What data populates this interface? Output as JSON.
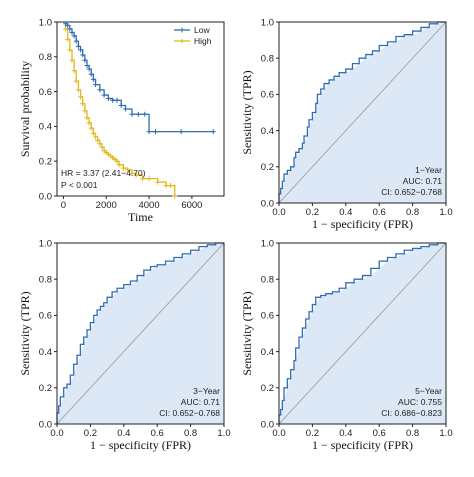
{
  "chart_data": [
    {
      "type": "line",
      "subtype": "kaplan-meier",
      "title": "",
      "xlabel": "Time",
      "ylabel": "Survival probability",
      "xlim": [
        -300,
        7500
      ],
      "ylim": [
        0,
        1.0
      ],
      "xticks": [
        0,
        2000,
        4000,
        6000
      ],
      "yticks": [
        0.0,
        0.2,
        0.4,
        0.6,
        0.8,
        1.0
      ],
      "xtick_labels": [
        "0",
        "2000",
        "4000",
        "6000"
      ],
      "ytick_labels": [
        "0.0",
        "0.2",
        "0.4",
        "0.6",
        "0.8",
        "1.0"
      ],
      "legend_position": "top-right",
      "series": [
        {
          "name": "Low",
          "color": "#2f6db3",
          "x": [
            0,
            100,
            200,
            300,
            400,
            500,
            600,
            700,
            800,
            900,
            1000,
            1100,
            1200,
            1300,
            1400,
            1500,
            1700,
            1900,
            2100,
            2300,
            2500,
            2700,
            2900,
            3200,
            3500,
            3800,
            4000,
            4300,
            5500,
            7000
          ],
          "y": [
            1.0,
            0.99,
            0.98,
            0.96,
            0.94,
            0.92,
            0.89,
            0.86,
            0.84,
            0.81,
            0.78,
            0.75,
            0.73,
            0.7,
            0.67,
            0.64,
            0.61,
            0.58,
            0.56,
            0.55,
            0.55,
            0.52,
            0.5,
            0.47,
            0.47,
            0.47,
            0.37,
            0.37,
            0.37,
            0.37
          ]
        },
        {
          "name": "High",
          "color": "#e3b71c",
          "x": [
            0,
            100,
            200,
            300,
            400,
            500,
            600,
            700,
            800,
            900,
            1000,
            1100,
            1200,
            1300,
            1400,
            1500,
            1600,
            1700,
            1800,
            1900,
            2000,
            2100,
            2200,
            2300,
            2400,
            2500,
            2600,
            2800,
            3000,
            3200,
            3400,
            3700,
            4000,
            4400,
            4800,
            5000,
            5200
          ],
          "y": [
            1.0,
            0.96,
            0.9,
            0.84,
            0.78,
            0.72,
            0.66,
            0.61,
            0.57,
            0.53,
            0.49,
            0.45,
            0.42,
            0.39,
            0.36,
            0.34,
            0.32,
            0.3,
            0.28,
            0.26,
            0.25,
            0.24,
            0.23,
            0.22,
            0.21,
            0.2,
            0.18,
            0.16,
            0.15,
            0.13,
            0.12,
            0.1,
            0.1,
            0.08,
            0.06,
            0.06,
            0.0
          ]
        }
      ],
      "annotations": [
        "HR = 3.37 (2.41−4.70)",
        "P < 0.001"
      ]
    },
    {
      "type": "line",
      "subtype": "roc",
      "title": "",
      "xlabel": "1 − specificity (FPR)",
      "ylabel": "Sensitivity (TPR)",
      "xlim": [
        0,
        1.0
      ],
      "ylim": [
        0,
        1.0
      ],
      "xticks": [
        0.0,
        0.2,
        0.4,
        0.6,
        0.8,
        1.0
      ],
      "yticks": [
        0.0,
        0.2,
        0.4,
        0.6,
        0.8,
        1.0
      ],
      "xtick_labels": [
        "0.0",
        "0.2",
        "0.4",
        "0.6",
        "0.8",
        "1.0"
      ],
      "ytick_labels": [
        "0.0",
        "0.2",
        "0.4",
        "0.6",
        "0.8",
        "1.0"
      ],
      "fill_color": "#dce8f5",
      "line_color": "#2f6db3",
      "x": [
        0,
        0.01,
        0.02,
        0.03,
        0.05,
        0.07,
        0.09,
        0.1,
        0.12,
        0.14,
        0.15,
        0.17,
        0.18,
        0.2,
        0.22,
        0.23,
        0.25,
        0.27,
        0.3,
        0.33,
        0.36,
        0.4,
        0.44,
        0.48,
        0.52,
        0.56,
        0.6,
        0.65,
        0.7,
        0.75,
        0.8,
        0.85,
        0.9,
        0.95,
        1.0
      ],
      "y": [
        0,
        0.05,
        0.08,
        0.12,
        0.16,
        0.18,
        0.2,
        0.25,
        0.28,
        0.3,
        0.33,
        0.37,
        0.42,
        0.46,
        0.5,
        0.55,
        0.6,
        0.63,
        0.66,
        0.68,
        0.7,
        0.72,
        0.74,
        0.77,
        0.8,
        0.82,
        0.84,
        0.87,
        0.89,
        0.92,
        0.93,
        0.95,
        0.97,
        0.99,
        1.0
      ],
      "annotations": [
        "1−Year",
        "AUC: 0.71",
        "CI: 0.652−0.768"
      ]
    },
    {
      "type": "line",
      "subtype": "roc",
      "title": "",
      "xlabel": "1 − specificity (FPR)",
      "ylabel": "Sensitivity (TPR)",
      "xlim": [
        0,
        1.0
      ],
      "ylim": [
        0,
        1.0
      ],
      "xticks": [
        0.0,
        0.2,
        0.4,
        0.6,
        0.8,
        1.0
      ],
      "yticks": [
        0.0,
        0.2,
        0.4,
        0.6,
        0.8,
        1.0
      ],
      "xtick_labels": [
        "0.0",
        "0.2",
        "0.4",
        "0.6",
        "0.8",
        "1.0"
      ],
      "ytick_labels": [
        "0.0",
        "0.2",
        "0.4",
        "0.6",
        "0.8",
        "1.0"
      ],
      "fill_color": "#dce8f5",
      "line_color": "#2f6db3",
      "x": [
        0,
        0.01,
        0.02,
        0.04,
        0.06,
        0.08,
        0.1,
        0.12,
        0.14,
        0.16,
        0.18,
        0.2,
        0.22,
        0.24,
        0.26,
        0.28,
        0.3,
        0.33,
        0.36,
        0.4,
        0.44,
        0.48,
        0.52,
        0.56,
        0.6,
        0.65,
        0.7,
        0.75,
        0.8,
        0.85,
        0.9,
        0.95,
        1.0
      ],
      "y": [
        0,
        0.06,
        0.1,
        0.15,
        0.2,
        0.22,
        0.27,
        0.33,
        0.38,
        0.44,
        0.48,
        0.52,
        0.56,
        0.6,
        0.63,
        0.65,
        0.67,
        0.7,
        0.73,
        0.75,
        0.77,
        0.79,
        0.82,
        0.85,
        0.87,
        0.88,
        0.9,
        0.92,
        0.94,
        0.96,
        0.98,
        0.99,
        1.0
      ],
      "annotations": [
        "3−Year",
        "AUC: 0.71",
        "CI: 0.652−0.768"
      ]
    },
    {
      "type": "line",
      "subtype": "roc",
      "title": "",
      "xlabel": "1 − specificity (FPR)",
      "ylabel": "Sensitivity (TPR)",
      "xlim": [
        0,
        1.0
      ],
      "ylim": [
        0,
        1.0
      ],
      "xticks": [
        0.0,
        0.2,
        0.4,
        0.6,
        0.8,
        1.0
      ],
      "yticks": [
        0.0,
        0.2,
        0.4,
        0.6,
        0.8,
        1.0
      ],
      "xtick_labels": [
        "0.0",
        "0.2",
        "0.4",
        "0.6",
        "0.8",
        "1.0"
      ],
      "ytick_labels": [
        "0.0",
        "0.2",
        "0.4",
        "0.6",
        "0.8",
        "1.0"
      ],
      "fill_color": "#dce8f5",
      "line_color": "#2f6db3",
      "x": [
        0,
        0.01,
        0.02,
        0.03,
        0.05,
        0.07,
        0.09,
        0.1,
        0.12,
        0.14,
        0.16,
        0.18,
        0.2,
        0.22,
        0.25,
        0.28,
        0.32,
        0.36,
        0.4,
        0.45,
        0.5,
        0.55,
        0.6,
        0.65,
        0.7,
        0.75,
        0.8,
        0.85,
        0.9,
        0.95,
        1.0
      ],
      "y": [
        0,
        0.05,
        0.08,
        0.13,
        0.2,
        0.25,
        0.3,
        0.35,
        0.42,
        0.48,
        0.53,
        0.58,
        0.62,
        0.66,
        0.7,
        0.71,
        0.72,
        0.73,
        0.75,
        0.78,
        0.8,
        0.82,
        0.86,
        0.9,
        0.92,
        0.94,
        0.96,
        0.97,
        0.98,
        0.99,
        1.0
      ],
      "annotations": [
        "5−Year",
        "AUC: 0.755",
        "CI: 0.686−0.823"
      ]
    }
  ]
}
